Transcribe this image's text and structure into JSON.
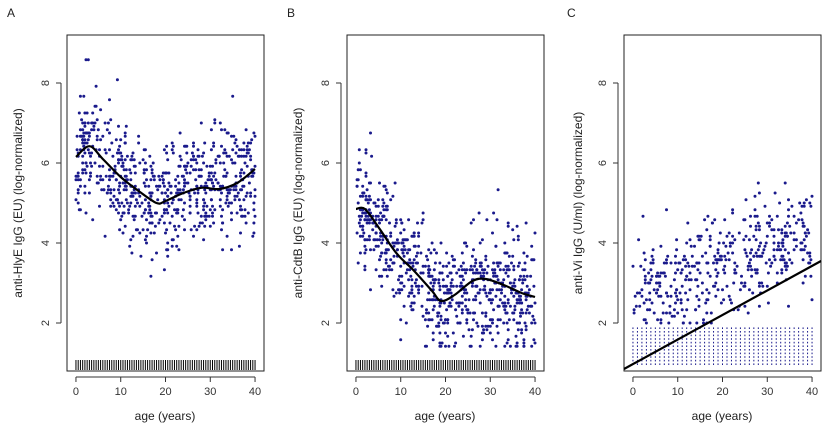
{
  "chart_data": [
    {
      "type": "scatter",
      "panel_label": "A",
      "xlabel": "age (years)",
      "ylabel": "anti-HlyE IgG (EU) (log-normalized)",
      "xlim": [
        -2,
        42
      ],
      "ylim": [
        0.8,
        9.2
      ],
      "x_ticks": [
        0,
        10,
        20,
        30,
        40
      ],
      "y_ticks": [
        2,
        4,
        6,
        8
      ],
      "point_color": "#1a1a8c",
      "rug": true,
      "points": {
        "n": 700,
        "seed": 11,
        "y_center_by_age": [
          [
            0,
            6.1
          ],
          [
            3,
            6.4
          ],
          [
            7,
            6.0
          ],
          [
            12,
            5.5
          ],
          [
            18,
            5.0
          ],
          [
            22,
            5.2
          ],
          [
            26,
            5.4
          ],
          [
            32,
            5.4
          ],
          [
            40,
            5.8
          ]
        ],
        "spread": 1.0,
        "y_min": 2.5,
        "y_max": 8.6
      },
      "curve": [
        [
          0,
          6.15
        ],
        [
          3,
          6.42
        ],
        [
          6,
          6.1
        ],
        [
          10,
          5.65
        ],
        [
          14,
          5.3
        ],
        [
          18,
          5.0
        ],
        [
          20,
          5.05
        ],
        [
          24,
          5.25
        ],
        [
          28,
          5.38
        ],
        [
          32,
          5.35
        ],
        [
          36,
          5.5
        ],
        [
          40,
          5.85
        ]
      ],
      "curve_type": "smooth"
    },
    {
      "type": "scatter",
      "panel_label": "B",
      "xlabel": "age (years)",
      "ylabel": "anti-CdtB IgG (EU) (log-normalized)",
      "xlim": [
        -2,
        42
      ],
      "ylim": [
        0.8,
        9.2
      ],
      "x_ticks": [
        0,
        10,
        20,
        30,
        40
      ],
      "y_ticks": [
        2,
        4,
        6,
        8
      ],
      "point_color": "#1a1a8c",
      "rug": true,
      "points": {
        "n": 750,
        "seed": 23,
        "y_center_by_age": [
          [
            0,
            5.0
          ],
          [
            4,
            4.7
          ],
          [
            9,
            3.8
          ],
          [
            14,
            3.2
          ],
          [
            19,
            2.5
          ],
          [
            22,
            2.7
          ],
          [
            28,
            3.0
          ],
          [
            34,
            2.8
          ],
          [
            40,
            2.6
          ]
        ],
        "spread": 0.95,
        "y_min": 1.4,
        "y_max": 7.3
      },
      "curve": [
        [
          0,
          4.85
        ],
        [
          2,
          4.85
        ],
        [
          5,
          4.4
        ],
        [
          9,
          3.75
        ],
        [
          13,
          3.3
        ],
        [
          17,
          2.8
        ],
        [
          19,
          2.55
        ],
        [
          22,
          2.7
        ],
        [
          26,
          3.05
        ],
        [
          29,
          3.1
        ],
        [
          33,
          2.95
        ],
        [
          37,
          2.75
        ],
        [
          40,
          2.65
        ]
      ],
      "curve_type": "smooth"
    },
    {
      "type": "scatter",
      "panel_label": "C",
      "xlabel": "age (years)",
      "ylabel": "anti-Vi IgG (U/ml) (log-normalized)",
      "xlim": [
        -2,
        42
      ],
      "ylim": [
        0.8,
        9.2
      ],
      "x_ticks": [
        0,
        10,
        20,
        30,
        40
      ],
      "y_ticks": [
        2,
        4,
        6,
        8
      ],
      "point_color": "#1a1a8c",
      "rug": false,
      "censored_columns": true,
      "censored_y_top": 1.9,
      "points": {
        "n": 430,
        "seed": 37,
        "y_center_by_age": [
          [
            0,
            2.7
          ],
          [
            10,
            3.0
          ],
          [
            20,
            3.4
          ],
          [
            30,
            3.8
          ],
          [
            40,
            4.1
          ]
        ],
        "spread": 0.85,
        "y_min": 2.0,
        "y_max": 6.4
      },
      "curve": [
        [
          -2,
          0.85
        ],
        [
          42,
          3.55
        ]
      ],
      "curve_type": "line"
    }
  ]
}
